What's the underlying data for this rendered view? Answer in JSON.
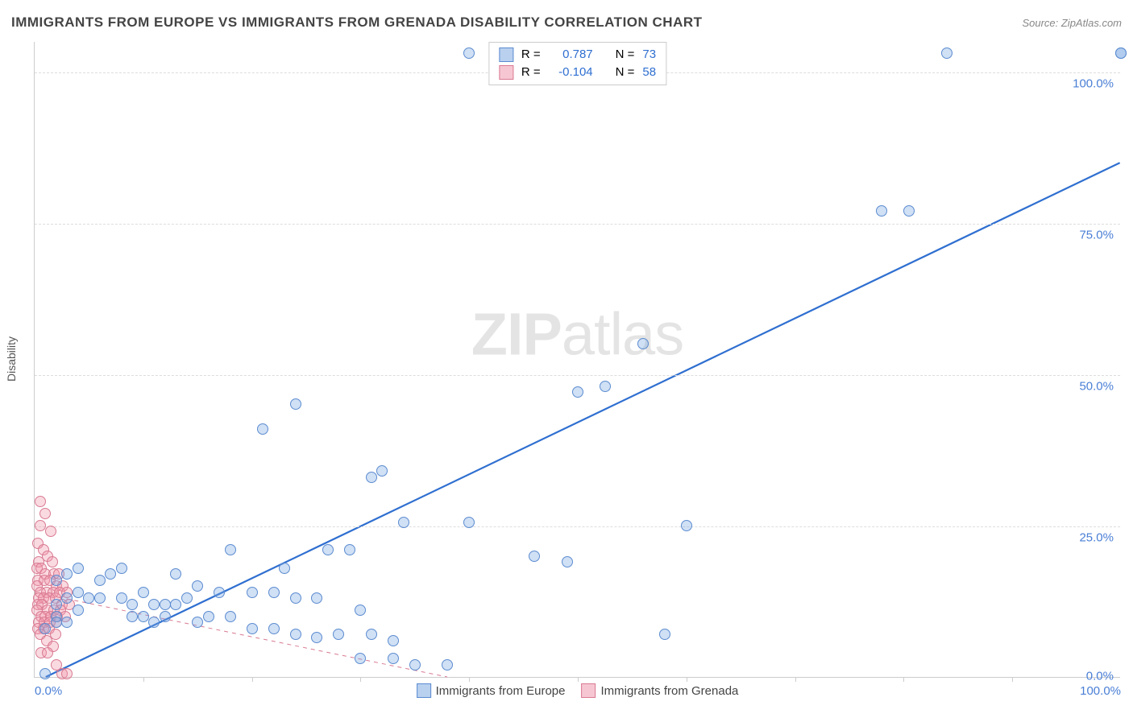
{
  "title": "IMMIGRANTS FROM EUROPE VS IMMIGRANTS FROM GRENADA DISABILITY CORRELATION CHART",
  "source": "Source: ZipAtlas.com",
  "ylabel": "Disability",
  "watermark": {
    "bold": "ZIP",
    "rest": "atlas"
  },
  "chart": {
    "type": "scatter",
    "xlim": [
      0,
      100
    ],
    "ylim": [
      0,
      105
    ],
    "ytick_labels": [
      "0.0%",
      "25.0%",
      "50.0%",
      "75.0%",
      "100.0%"
    ],
    "ytick_vals": [
      0,
      25,
      50,
      75,
      100
    ],
    "xtick_labels": [
      "0.0%",
      "100.0%"
    ],
    "xtick_vals": [
      0,
      100
    ],
    "xminor_ticks": [
      10,
      20,
      30,
      40,
      50,
      60,
      70,
      80,
      90
    ],
    "grid_color": "#dddddd",
    "axis_color": "#cccccc",
    "tick_color": "#4a7fd6",
    "background": "#ffffff",
    "marker_radius": 7,
    "marker_stroke_width": 1.2,
    "series": [
      {
        "name": "Immigrants from Europe",
        "fill": "rgba(120,165,225,0.35)",
        "stroke": "#5b8bd0",
        "swatch_fill": "#b9d0ef",
        "swatch_stroke": "#5b8bd0",
        "trend": {
          "x1": 1,
          "y1": 0,
          "x2": 100,
          "y2": 85,
          "stroke": "#2f6fd0",
          "width": 2.2,
          "dash": ""
        },
        "R": "0.787",
        "N": "73",
        "points": [
          [
            100,
            103
          ],
          [
            100,
            103
          ],
          [
            84,
            103
          ],
          [
            40,
            103
          ],
          [
            78,
            77
          ],
          [
            80.5,
            77
          ],
          [
            56,
            55
          ],
          [
            52.5,
            48
          ],
          [
            50,
            47
          ],
          [
            24,
            45
          ],
          [
            21,
            41
          ],
          [
            32,
            34
          ],
          [
            31,
            33
          ],
          [
            34,
            25.5
          ],
          [
            40,
            25.5
          ],
          [
            60,
            25
          ],
          [
            18,
            21
          ],
          [
            27,
            21
          ],
          [
            29,
            21
          ],
          [
            46,
            20
          ],
          [
            49,
            19
          ],
          [
            23,
            18
          ],
          [
            13,
            17
          ],
          [
            15,
            15
          ],
          [
            17,
            14
          ],
          [
            20,
            14
          ],
          [
            22,
            14
          ],
          [
            24,
            13
          ],
          [
            26,
            13
          ],
          [
            4,
            14
          ],
          [
            5,
            13
          ],
          [
            6,
            13
          ],
          [
            8,
            13
          ],
          [
            9,
            12
          ],
          [
            10,
            14
          ],
          [
            11,
            12
          ],
          [
            12,
            12
          ],
          [
            13,
            12
          ],
          [
            14,
            13
          ],
          [
            6,
            16
          ],
          [
            7,
            17
          ],
          [
            8,
            18
          ],
          [
            9,
            10
          ],
          [
            10,
            10
          ],
          [
            11,
            9
          ],
          [
            12,
            10
          ],
          [
            15,
            9
          ],
          [
            16,
            10
          ],
          [
            18,
            10
          ],
          [
            20,
            8
          ],
          [
            22,
            8
          ],
          [
            24,
            7
          ],
          [
            26,
            6.5
          ],
          [
            28,
            7
          ],
          [
            30,
            11
          ],
          [
            31,
            7
          ],
          [
            33,
            6
          ],
          [
            58,
            7
          ],
          [
            30,
            3
          ],
          [
            33,
            3
          ],
          [
            35,
            2
          ],
          [
            38,
            2
          ],
          [
            2,
            12
          ],
          [
            3,
            13
          ],
          [
            2,
            16
          ],
          [
            3,
            17
          ],
          [
            4,
            18
          ],
          [
            2,
            10
          ],
          [
            2,
            9
          ],
          [
            3,
            9
          ],
          [
            4,
            11
          ],
          [
            1,
            8
          ],
          [
            1,
            0.5
          ]
        ]
      },
      {
        "name": "Immigrants from Grenada",
        "fill": "rgba(240,150,170,0.35)",
        "stroke": "#d97a92",
        "swatch_fill": "#f6c7d3",
        "swatch_stroke": "#d97a92",
        "trend": {
          "x1": 0,
          "y1": 14,
          "x2": 38,
          "y2": 0,
          "stroke": "#d97a92",
          "width": 1,
          "dash": "5,5"
        },
        "R": "-0.104",
        "N": "58",
        "points": [
          [
            0.5,
            29
          ],
          [
            1,
            27
          ],
          [
            0.5,
            25
          ],
          [
            1.5,
            24
          ],
          [
            0.3,
            22
          ],
          [
            0.8,
            21
          ],
          [
            1.2,
            20
          ],
          [
            0.4,
            19
          ],
          [
            1.6,
            19
          ],
          [
            0.2,
            18
          ],
          [
            0.6,
            18
          ],
          [
            1.0,
            17
          ],
          [
            1.8,
            17
          ],
          [
            2.2,
            17
          ],
          [
            0.3,
            16
          ],
          [
            0.9,
            16
          ],
          [
            1.4,
            16
          ],
          [
            2.0,
            15
          ],
          [
            2.6,
            15
          ],
          [
            0.2,
            15
          ],
          [
            0.5,
            14
          ],
          [
            1.1,
            14
          ],
          [
            1.7,
            14
          ],
          [
            2.3,
            14
          ],
          [
            3.0,
            14
          ],
          [
            0.4,
            13
          ],
          [
            0.8,
            13
          ],
          [
            1.3,
            13
          ],
          [
            1.9,
            13
          ],
          [
            2.5,
            12
          ],
          [
            3.2,
            12
          ],
          [
            0.3,
            12
          ],
          [
            0.7,
            12
          ],
          [
            1.2,
            11
          ],
          [
            1.8,
            11
          ],
          [
            2.4,
            11
          ],
          [
            0.2,
            11
          ],
          [
            0.6,
            10
          ],
          [
            1.0,
            10
          ],
          [
            1.5,
            10
          ],
          [
            2.1,
            10
          ],
          [
            2.8,
            10
          ],
          [
            0.4,
            9
          ],
          [
            0.9,
            9
          ],
          [
            1.4,
            9
          ],
          [
            2.0,
            9
          ],
          [
            0.3,
            8
          ],
          [
            0.8,
            8
          ],
          [
            1.3,
            8
          ],
          [
            1.9,
            7
          ],
          [
            0.5,
            7
          ],
          [
            1.1,
            6
          ],
          [
            1.7,
            5
          ],
          [
            0.6,
            4
          ],
          [
            1.2,
            4
          ],
          [
            2.0,
            2
          ],
          [
            2.5,
            0.5
          ],
          [
            3.0,
            0.5
          ]
        ]
      }
    ]
  },
  "legend_top": {
    "R_label": "R =",
    "N_label": "N ="
  },
  "legend_bottom": {
    "s1": "Immigrants from Europe",
    "s2": "Immigrants from Grenada"
  }
}
